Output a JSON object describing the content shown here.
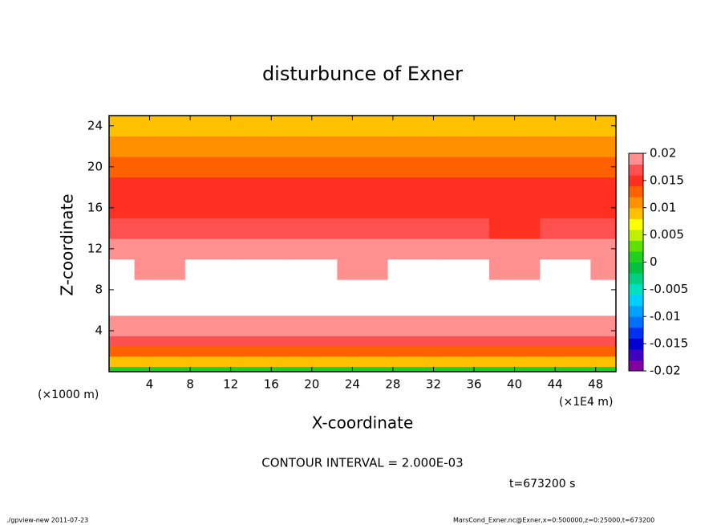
{
  "chart_data": {
    "type": "contour",
    "title": "disturbunce of Exner",
    "xlabel": "X-coordinate",
    "ylabel": "Z-coordinate",
    "xunit": "(×1E4 m)",
    "yunit": "(×1000 m)",
    "note": "CONTOUR INTERVAL = 2.000E-03",
    "time": "t=673200 s",
    "footer_left": "./gpview-new   2011-07-23",
    "footer_right": "MarsCond_Exner.nc@Exner,x=0:500000,z=0:25000,t=673200",
    "x": [
      0,
      5,
      10,
      15,
      20,
      25,
      30,
      35,
      40,
      45,
      50
    ],
    "z": [
      0,
      1,
      2,
      3,
      4,
      5,
      6,
      8,
      10,
      12,
      14,
      16,
      18,
      20,
      22,
      24,
      25
    ],
    "values": [
      [
        0.001,
        0.001,
        0.001,
        0.001,
        0.001,
        0.001,
        0.001,
        0.001,
        0.001,
        0.001,
        0.001
      ],
      [
        0.008,
        0.008,
        0.008,
        0.008,
        0.008,
        0.008,
        0.008,
        0.008,
        0.008,
        0.008,
        0.008
      ],
      [
        0.013,
        0.013,
        0.013,
        0.013,
        0.013,
        0.013,
        0.013,
        0.013,
        0.013,
        0.013,
        0.013
      ],
      [
        0.016,
        0.016,
        0.016,
        0.016,
        0.016,
        0.016,
        0.016,
        0.016,
        0.016,
        0.016,
        0.016
      ],
      [
        0.0185,
        0.0185,
        0.0185,
        0.0185,
        0.0185,
        0.0185,
        0.0185,
        0.0185,
        0.0185,
        0.0185,
        0.0185
      ],
      [
        0.0195,
        0.0195,
        0.0195,
        0.0195,
        0.0195,
        0.0195,
        0.0195,
        0.0195,
        0.0195,
        0.0195,
        0.0195
      ],
      [
        0.021,
        0.021,
        0.021,
        0.021,
        0.021,
        0.021,
        0.021,
        0.021,
        0.021,
        0.021,
        0.021
      ],
      [
        0.021,
        0.021,
        0.021,
        0.021,
        0.021,
        0.021,
        0.021,
        0.021,
        0.021,
        0.021,
        0.021
      ],
      [
        0.0205,
        0.0195,
        0.0205,
        0.0205,
        0.0205,
        0.0195,
        0.0205,
        0.0205,
        0.0195,
        0.0205,
        0.0195
      ],
      [
        0.018,
        0.018,
        0.018,
        0.018,
        0.018,
        0.018,
        0.018,
        0.018,
        0.018,
        0.018,
        0.018
      ],
      [
        0.0165,
        0.0165,
        0.0165,
        0.0165,
        0.0165,
        0.0165,
        0.0165,
        0.0165,
        0.015,
        0.0165,
        0.0165
      ],
      [
        0.0155,
        0.0155,
        0.0155,
        0.0155,
        0.0155,
        0.0155,
        0.0155,
        0.0155,
        0.0155,
        0.0155,
        0.0155
      ],
      [
        0.0145,
        0.0145,
        0.0145,
        0.0145,
        0.0145,
        0.0145,
        0.0145,
        0.0145,
        0.0145,
        0.0145,
        0.0145
      ],
      [
        0.013,
        0.013,
        0.013,
        0.013,
        0.013,
        0.013,
        0.013,
        0.013,
        0.013,
        0.013,
        0.013
      ],
      [
        0.011,
        0.011,
        0.011,
        0.011,
        0.011,
        0.011,
        0.011,
        0.011,
        0.011,
        0.011,
        0.011
      ],
      [
        0.009,
        0.009,
        0.009,
        0.009,
        0.009,
        0.009,
        0.009,
        0.009,
        0.009,
        0.009,
        0.009
      ],
      [
        0.008,
        0.008,
        0.008,
        0.008,
        0.008,
        0.008,
        0.008,
        0.008,
        0.008,
        0.008,
        0.008
      ]
    ],
    "xlim": [
      0,
      50
    ],
    "xticks": [
      4,
      8,
      12,
      16,
      20,
      24,
      28,
      32,
      36,
      40,
      44,
      48
    ],
    "ylim": [
      0,
      25
    ],
    "yticks": [
      4,
      8,
      12,
      16,
      20,
      24
    ],
    "levels": [
      -0.02,
      -0.018,
      -0.016,
      -0.014,
      -0.012,
      -0.01,
      -0.008,
      -0.006,
      -0.004,
      -0.002,
      0,
      0.002,
      0.004,
      0.006,
      0.008,
      0.01,
      0.012,
      0.014,
      0.016,
      0.018,
      0.02
    ],
    "colors": [
      "#8000a0",
      "#4000c0",
      "#0000d0",
      "#0030f0",
      "#0070ff",
      "#00a0ff",
      "#00d0ff",
      "#00e0c0",
      "#00d080",
      "#00c040",
      "#20d020",
      "#60e000",
      "#c0f000",
      "#ffff00",
      "#ffc000",
      "#ff9000",
      "#ff6000",
      "#ff3020",
      "#ff5050",
      "#ff9090"
    ],
    "cbar_ticks": [
      -0.02,
      -0.015,
      -0.01,
      -0.005,
      0,
      0.005,
      0.01,
      0.015,
      0.02
    ]
  }
}
